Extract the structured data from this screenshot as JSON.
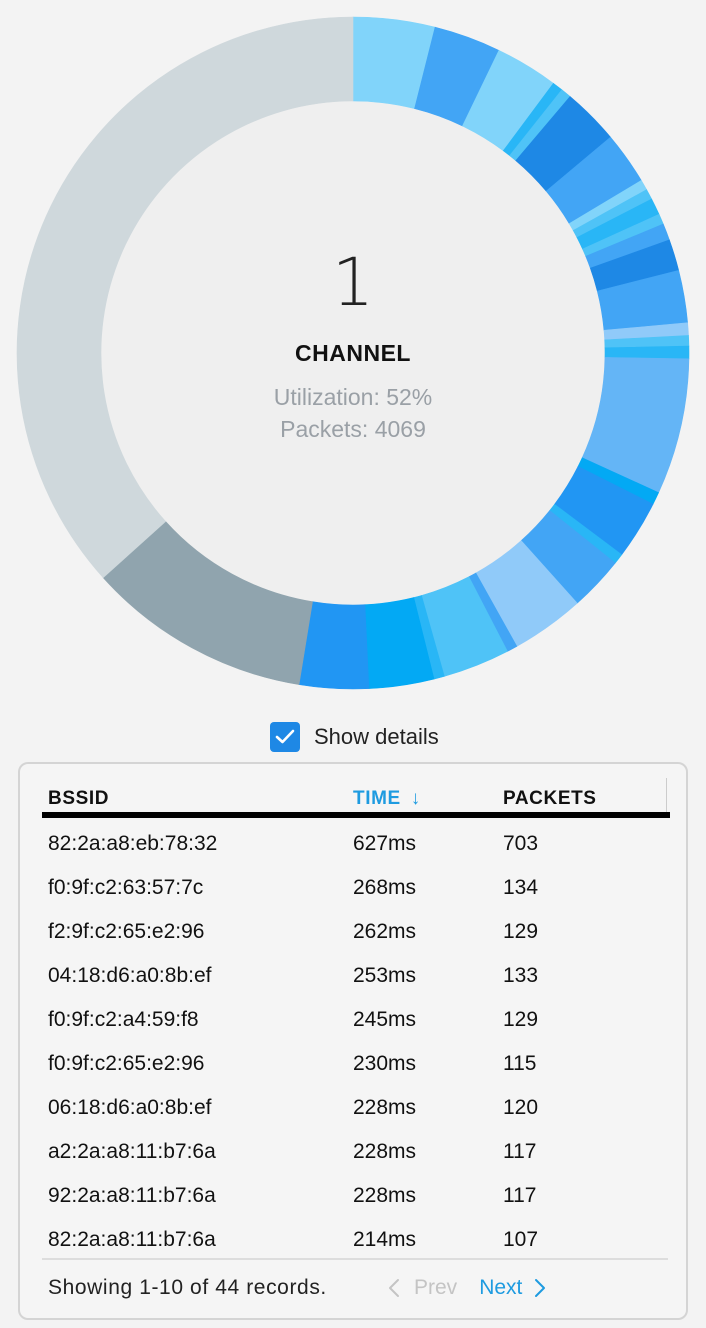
{
  "channel": {
    "number": "1",
    "label": "CHANNEL",
    "utilization_text": "Utilization: 52%",
    "packets_text": "Packets: 4069"
  },
  "chart_data": {
    "type": "pie",
    "title": "",
    "segments": [
      {
        "name": "s1",
        "value": 3.9,
        "color": "#81d4fa"
      },
      {
        "name": "s2",
        "value": 3.2,
        "color": "#42a5f5"
      },
      {
        "name": "s3",
        "value": 3.0,
        "color": "#81d4fa"
      },
      {
        "name": "s4",
        "value": 0.5,
        "color": "#29b6f6"
      },
      {
        "name": "s5",
        "value": 0.5,
        "color": "#4fc3f7"
      },
      {
        "name": "s6",
        "value": 2.7,
        "color": "#1e88e5"
      },
      {
        "name": "s7",
        "value": 2.5,
        "color": "#42a5f5"
      },
      {
        "name": "s8",
        "value": 0.5,
        "color": "#81d4fa"
      },
      {
        "name": "s9",
        "value": 0.5,
        "color": "#4fc3f7"
      },
      {
        "name": "s10",
        "value": 0.8,
        "color": "#29b6f6"
      },
      {
        "name": "s11",
        "value": 0.5,
        "color": "#4fc3f7"
      },
      {
        "name": "s12",
        "value": 0.8,
        "color": "#42a5f5"
      },
      {
        "name": "s13",
        "value": 1.5,
        "color": "#1e88e5"
      },
      {
        "name": "s14",
        "value": 2.5,
        "color": "#42a5f5"
      },
      {
        "name": "s15",
        "value": 0.6,
        "color": "#90caf9"
      },
      {
        "name": "s16",
        "value": 0.5,
        "color": "#4fc3f7"
      },
      {
        "name": "s17",
        "value": 0.6,
        "color": "#29b6f6"
      },
      {
        "name": "s18",
        "value": 6.5,
        "color": "#64b5f6"
      },
      {
        "name": "s19",
        "value": 0.6,
        "color": "#03a9f4"
      },
      {
        "name": "s20",
        "value": 2.8,
        "color": "#2196f3"
      },
      {
        "name": "s21",
        "value": 0.5,
        "color": "#29b6f6"
      },
      {
        "name": "s22",
        "value": 2.6,
        "color": "#42a5f5"
      },
      {
        "name": "s23",
        "value": 3.5,
        "color": "#90caf9"
      },
      {
        "name": "s24",
        "value": 0.5,
        "color": "#42a5f5"
      },
      {
        "name": "s25",
        "value": 3.2,
        "color": "#4fc3f7"
      },
      {
        "name": "s26",
        "value": 0.5,
        "color": "#29b6f6"
      },
      {
        "name": "s27",
        "value": 3.1,
        "color": "#03a9f4"
      },
      {
        "name": "s28",
        "value": 3.3,
        "color": "#2196f3"
      },
      {
        "name": "s29",
        "value": 10.7,
        "color": "#90a4ae"
      },
      {
        "name": "s30",
        "value": 36.4,
        "color": "#cfd8dc"
      }
    ]
  },
  "details": {
    "label": "Show details",
    "checked": true
  },
  "table": {
    "headers": [
      "BSSID",
      "TIME",
      "PACKETS"
    ],
    "sort_arrow": "↓",
    "rows": [
      [
        "82:2a:a8:eb:78:32",
        "627ms",
        "703"
      ],
      [
        "f0:9f:c2:63:57:7c",
        "268ms",
        "134"
      ],
      [
        "f2:9f:c2:65:e2:96",
        "262ms",
        "129"
      ],
      [
        "04:18:d6:a0:8b:ef",
        "253ms",
        "133"
      ],
      [
        "f0:9f:c2:a4:59:f8",
        "245ms",
        "129"
      ],
      [
        "f0:9f:c2:65:e2:96",
        "230ms",
        "115"
      ],
      [
        "06:18:d6:a0:8b:ef",
        "228ms",
        "120"
      ],
      [
        "a2:2a:a8:11:b7:6a",
        "228ms",
        "117"
      ],
      [
        "92:2a:a8:11:b7:6a",
        "228ms",
        "117"
      ],
      [
        "82:2a:a8:11:b7:6a",
        "214ms",
        "107"
      ]
    ]
  },
  "footer": {
    "showing": "Showing 1-10 of 44 records.",
    "prev": "Prev",
    "next": "Next"
  }
}
